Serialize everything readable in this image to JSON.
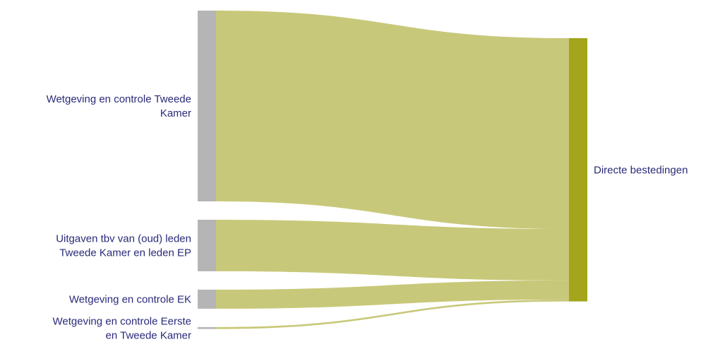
{
  "chart_data": {
    "type": "sankey",
    "colors": {
      "source_node": "#b5b5b5",
      "target_node": "#a3a51c",
      "link": "#c8c87a",
      "label": "#2a2a7a"
    },
    "sources": [
      {
        "label_lines": [
          "Wetgeving en controle Tweede",
          "Kamer"
        ],
        "value": 100
      },
      {
        "label_lines": [
          "Uitgaven tbv van (oud) leden",
          "Tweede Kamer en leden EP"
        ],
        "value": 27
      },
      {
        "label_lines": [
          "Wetgeving en controle EK"
        ],
        "value": 10
      },
      {
        "label_lines": [
          "Wetgeving en controle Eerste",
          "en Tweede Kamer"
        ],
        "value": 1
      }
    ],
    "target": {
      "label_lines": [
        "Directe bestedingen"
      ],
      "value": 138
    }
  }
}
